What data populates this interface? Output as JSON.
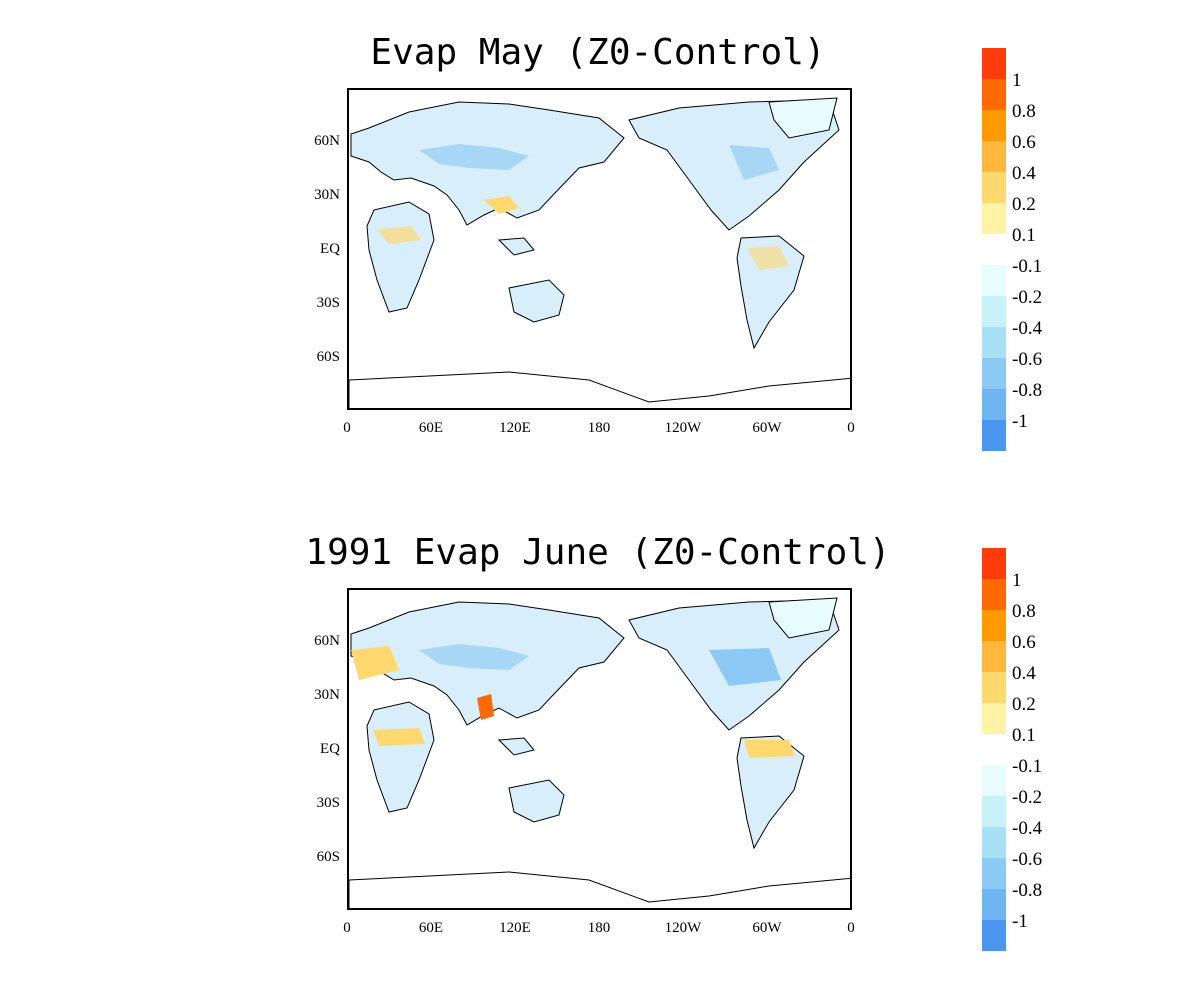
{
  "maps": [
    {
      "title": "Evap May (Z0-Control)",
      "lat_labels": [
        "60N",
        "30N",
        "EQ",
        "30S",
        "60S"
      ],
      "lon_labels": [
        "0",
        "60E",
        "120E",
        "180",
        "120W",
        "60W",
        "0"
      ]
    },
    {
      "title": "1991 Evap June (Z0-Control)",
      "lat_labels": [
        "60N",
        "30N",
        "EQ",
        "30S",
        "60S"
      ],
      "lon_labels": [
        "0",
        "60E",
        "120E",
        "180",
        "120W",
        "60W",
        "0"
      ]
    }
  ],
  "colorbar": {
    "labels": [
      "1",
      "0.8",
      "0.6",
      "0.4",
      "0.2",
      "0.1",
      "-0.1",
      "-0.2",
      "-0.4",
      "-0.6",
      "-0.8",
      "-1"
    ],
    "colors_positive": [
      "#ff3c0a",
      "#ff6a00",
      "#ff9a00",
      "#ffb83c",
      "#ffd870",
      "#fff3a6",
      "#fffbd2"
    ],
    "colors_negative": [
      "#e6fcff",
      "#c8f2fa",
      "#a8e0f5",
      "#8ccaf5",
      "#6fb4f3",
      "#56a0f0",
      "#4a96ef"
    ]
  }
}
